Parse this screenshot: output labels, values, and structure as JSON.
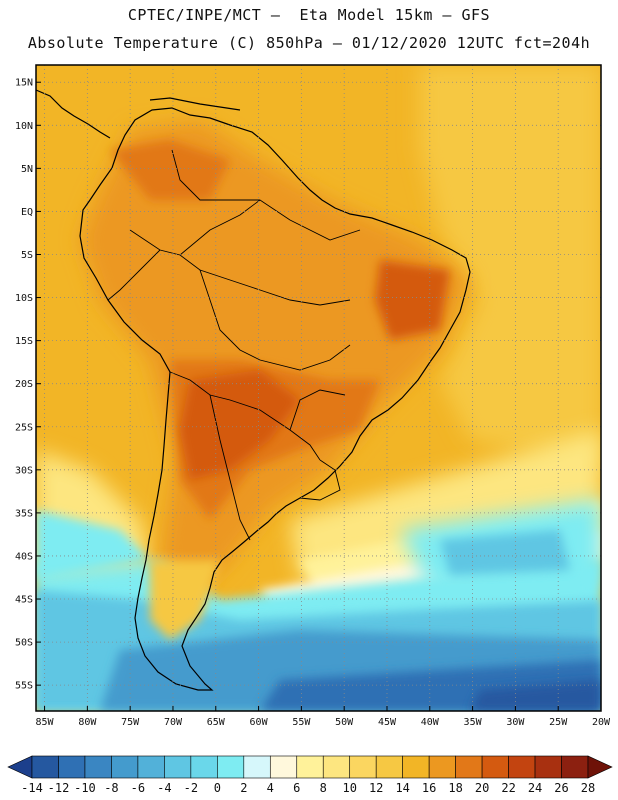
{
  "header": {
    "line1": "CPTEC/INPE/MCT –  Eta Model 15km – GFS",
    "line2": "Absolute Temperature (C) 850hPa – 01/12/2020 12UTC fct=204h"
  },
  "map": {
    "lat_labels": [
      "15N",
      "10N",
      "5N",
      "EQ",
      "5S",
      "10S",
      "15S",
      "20S",
      "25S",
      "30S",
      "35S",
      "40S",
      "45S",
      "50S",
      "55S"
    ],
    "lon_labels": [
      "85W",
      "80W",
      "75W",
      "70W",
      "65W",
      "60W",
      "55W",
      "50W",
      "45W",
      "40W",
      "35W",
      "30W",
      "25W",
      "20W"
    ],
    "lat_range": [
      17,
      -58
    ],
    "lon_range": [
      -86,
      -20
    ],
    "grid": true
  },
  "colorbar": {
    "labels": [
      "-14",
      "-12",
      "-10",
      "-8",
      "-6",
      "-4",
      "-2",
      "0",
      "2",
      "4",
      "6",
      "8",
      "10",
      "12",
      "14",
      "16",
      "18",
      "20",
      "22",
      "24",
      "26",
      "28"
    ],
    "colors": [
      "#1c3f8c",
      "#2558a0",
      "#2f70b4",
      "#3a86c2",
      "#449bcd",
      "#52b1d9",
      "#5fc6e3",
      "#6ad7ea",
      "#7eecf2",
      "#d6f7fb",
      "#fff8dc",
      "#fff29a",
      "#fde680",
      "#fbd660",
      "#f6c843",
      "#f2b526",
      "#ec9820",
      "#e27818",
      "#d45a10",
      "#c34410",
      "#a83010",
      "#8c2010",
      "#6e1208"
    ]
  }
}
